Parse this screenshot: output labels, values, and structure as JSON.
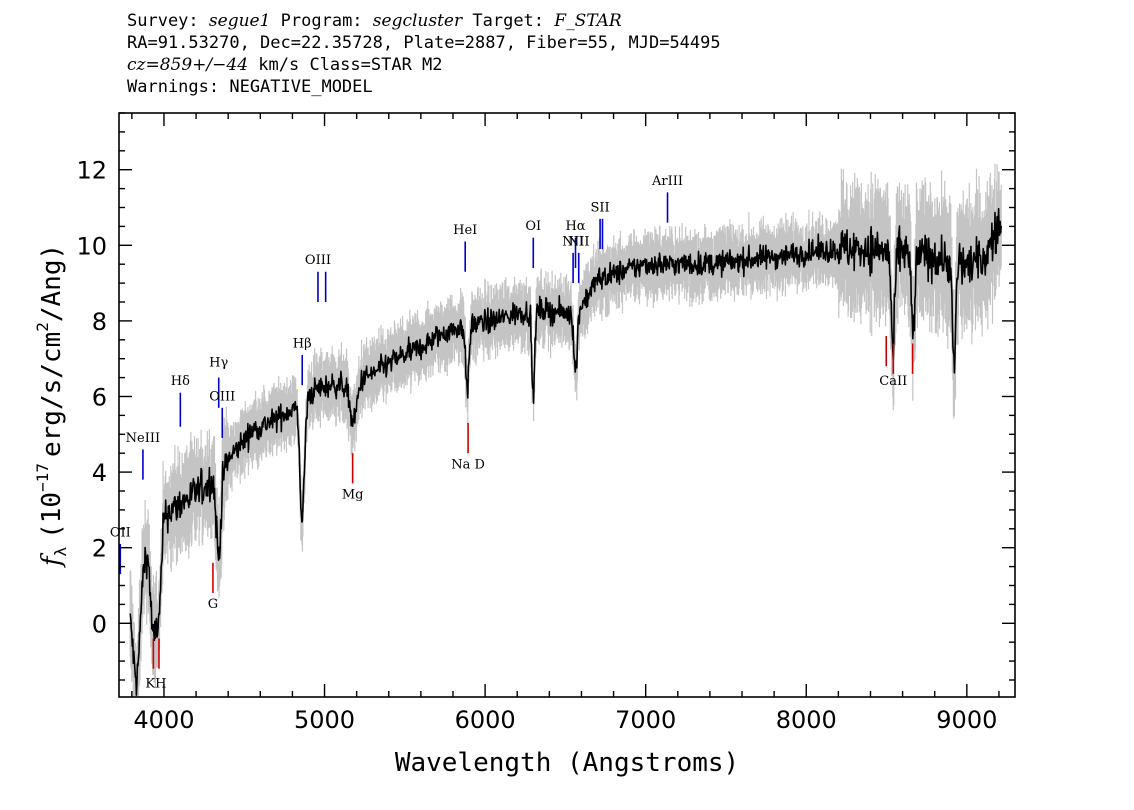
{
  "header": {
    "line1": {
      "survey_label": "Survey:",
      "survey": "segue1",
      "program_label": "Program:",
      "program": "segcluster",
      "target_label": "Target:",
      "target": "F_STAR"
    },
    "line2": "RA=91.53270, Dec=22.35728, Plate=2887, Fiber=55, MJD=54495",
    "line3": {
      "cz": "cz=859+/−44",
      "rest": "km/s Class=STAR M2"
    },
    "line4": "Warnings: NEGATIVE_MODEL"
  },
  "chart_data": {
    "type": "line",
    "xlabel": "Wavelength (Angstroms)",
    "ylabel_prefix": "f",
    "ylabel_sub": "λ",
    "ylabel_main": "(10",
    "ylabel_exp": "−17",
    "ylabel_units": "erg/s/cm",
    "ylabel_exp2": "2",
    "ylabel_tail": "/Ang)",
    "xlim": [
      3720,
      9300
    ],
    "ylim": [
      -1.95,
      13.5
    ],
    "x_major_ticks": [
      4000,
      5000,
      6000,
      7000,
      8000,
      9000
    ],
    "x_tick_labels": [
      "4000",
      "5000",
      "6000",
      "7000",
      "8000",
      "9000"
    ],
    "y_major_ticks": [
      0,
      2,
      4,
      6,
      8,
      10,
      12
    ],
    "y_tick_labels": [
      "0",
      "2",
      "4",
      "6",
      "8",
      "10",
      "12"
    ],
    "colors": {
      "flux": "#000000",
      "error": "#c4c4c4",
      "emission": "#0000cc",
      "absorption": "#cc0000"
    },
    "continuum": [
      [
        3780,
        0.3
      ],
      [
        3850,
        1.4
      ],
      [
        3950,
        2.8
      ],
      [
        4050,
        3.0
      ],
      [
        4150,
        3.3
      ],
      [
        4250,
        3.6
      ],
      [
        4350,
        4.0
      ],
      [
        4450,
        4.6
      ],
      [
        4550,
        5.1
      ],
      [
        4700,
        5.4
      ],
      [
        4850,
        5.8
      ],
      [
        4950,
        6.2
      ],
      [
        5050,
        6.3
      ],
      [
        5150,
        6.3
      ],
      [
        5300,
        6.6
      ],
      [
        5450,
        7.0
      ],
      [
        5600,
        7.3
      ],
      [
        5750,
        7.7
      ],
      [
        5900,
        7.9
      ],
      [
        6050,
        8.0
      ],
      [
        6200,
        8.2
      ],
      [
        6350,
        8.3
      ],
      [
        6500,
        8.2
      ],
      [
        6600,
        8.4
      ],
      [
        6700,
        9.1
      ],
      [
        6850,
        9.3
      ],
      [
        7000,
        9.5
      ],
      [
        7200,
        9.5
      ],
      [
        7400,
        9.5
      ],
      [
        7600,
        9.6
      ],
      [
        7800,
        9.7
      ],
      [
        8000,
        9.8
      ],
      [
        8200,
        9.9
      ],
      [
        8400,
        9.9
      ],
      [
        8600,
        9.8
      ],
      [
        8800,
        9.7
      ],
      [
        9000,
        9.5
      ],
      [
        9100,
        9.6
      ],
      [
        9200,
        10.5
      ]
    ],
    "dips": [
      [
        3830,
        -1.5,
        30
      ],
      [
        3935,
        -0.3,
        25
      ],
      [
        3970,
        0.5,
        20
      ],
      [
        4340,
        1.8,
        20
      ],
      [
        4861,
        2.8,
        20
      ],
      [
        5180,
        5.3,
        30
      ],
      [
        5890,
        6.2,
        15
      ],
      [
        6300,
        5.9,
        12
      ],
      [
        6563,
        6.6,
        15
      ],
      [
        8540,
        7.1,
        15
      ],
      [
        8665,
        7.6,
        15
      ],
      [
        8920,
        6.8,
        15
      ]
    ],
    "emission_lines": [
      {
        "label": "OII",
        "x": 3728,
        "y0": 1.3,
        "y1": 2.1,
        "label_y": 2.3
      },
      {
        "label": "NeIII",
        "x": 3869,
        "y0": 3.8,
        "y1": 4.6,
        "label_y": 4.8
      },
      {
        "label": "Hδ",
        "x": 4102,
        "y0": 5.2,
        "y1": 6.1,
        "label_y": 6.3
      },
      {
        "label": "Hγ",
        "x": 4341,
        "y0": 5.7,
        "y1": 6.5,
        "label_y": 6.8
      },
      {
        "label": "OIII",
        "x": 4363,
        "y0": 4.9,
        "y1": 5.7,
        "label_y": 5.9
      },
      {
        "label": "Hβ",
        "x": 4861,
        "y0": 6.3,
        "y1": 7.1,
        "label_y": 7.3
      },
      {
        "label": "OIII",
        "x": 4959,
        "y0": 8.5,
        "y1": 9.3,
        "label_y": 9.5
      },
      {
        "label": "",
        "x": 5007,
        "y0": 8.5,
        "y1": 9.3,
        "label_y": 9.5
      },
      {
        "label": "HeI",
        "x": 5876,
        "y0": 9.3,
        "y1": 10.1,
        "label_y": 10.3
      },
      {
        "label": "OI",
        "x": 6300,
        "y0": 9.4,
        "y1": 10.2,
        "label_y": 10.4
      },
      {
        "label": "NII",
        "x": 6548,
        "y0": 9.0,
        "y1": 9.8,
        "label_y": 10.0
      },
      {
        "label": "Hα",
        "x": 6563,
        "y0": 9.4,
        "y1": 10.2,
        "label_y": 10.4
      },
      {
        "label": "NII",
        "x": 6583,
        "y0": 9.0,
        "y1": 9.8,
        "label_y": 10.0
      },
      {
        "label": "SII",
        "x": 6716,
        "y0": 9.9,
        "y1": 10.7,
        "label_y": 10.9
      },
      {
        "label": "",
        "x": 6731,
        "y0": 9.9,
        "y1": 10.7,
        "label_y": 10.9
      },
      {
        "label": "ArIII",
        "x": 7136,
        "y0": 10.6,
        "y1": 11.4,
        "label_y": 11.6
      }
    ],
    "absorption_lines": [
      {
        "label": "",
        "x": 3934,
        "y0": -1.2,
        "y1": -0.4
      },
      {
        "label": "",
        "x": 3969,
        "y0": -1.2,
        "y1": -0.4
      },
      {
        "label": "KH",
        "x": 3950,
        "label_y": -1.7
      },
      {
        "label": "G",
        "x": 4305,
        "y0": 0.8,
        "y1": 1.6,
        "label_y": 0.4
      },
      {
        "label": "Mg",
        "x": 5175,
        "y0": 3.7,
        "y1": 4.5,
        "label_y": 3.3
      },
      {
        "label": "Na D",
        "x": 5894,
        "y0": 4.5,
        "y1": 5.3,
        "label_y": 4.1
      },
      {
        "label": "",
        "x": 8498,
        "y0": 6.8,
        "y1": 7.6
      },
      {
        "label": "CaII",
        "x": 8542,
        "y0": 6.6,
        "y1": 7.4,
        "label_y": 6.3
      },
      {
        "label": "",
        "x": 8662,
        "y0": 6.6,
        "y1": 7.4
      }
    ]
  }
}
